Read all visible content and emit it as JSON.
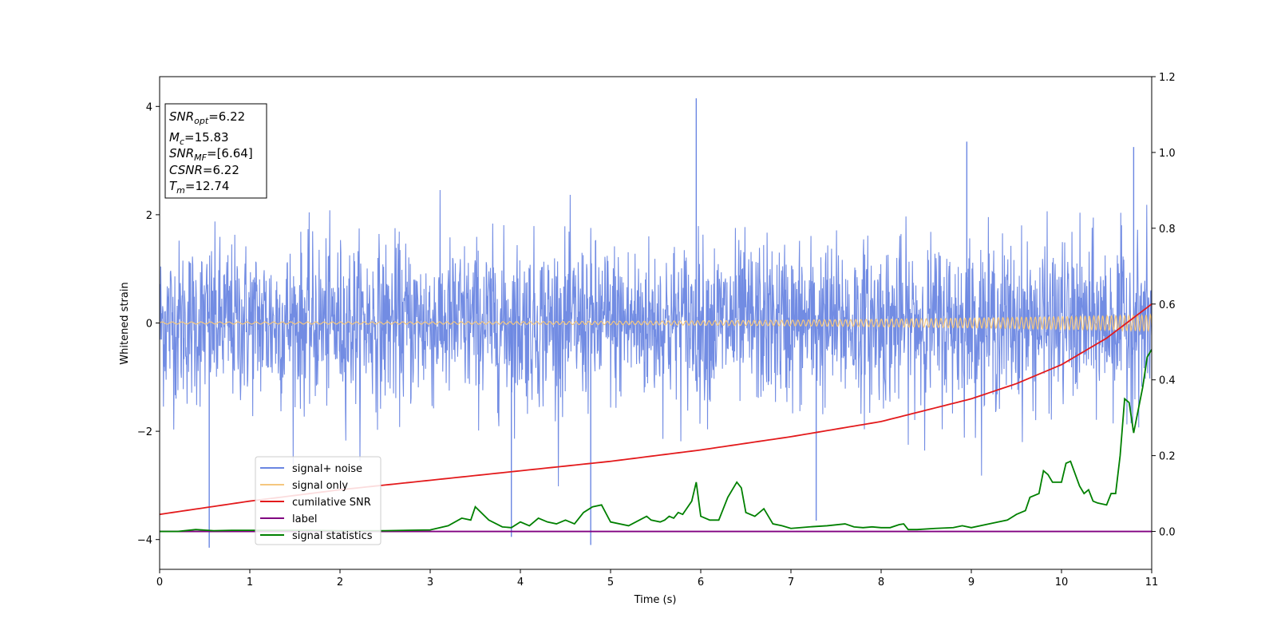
{
  "chart_data": {
    "type": "line",
    "title": "",
    "xlabel": "Time (s)",
    "ylabel": "Whitened strain",
    "xlim": [
      0,
      11
    ],
    "ylim_left": [
      -4.55,
      4.55
    ],
    "ylim_right": [
      -0.1,
      1.2
    ],
    "x_ticks": [
      0,
      1,
      2,
      3,
      4,
      5,
      6,
      7,
      8,
      9,
      10,
      11
    ],
    "y_left_ticks": [
      -4,
      -2,
      0,
      2,
      4
    ],
    "y_right_ticks": [
      "0.0",
      "0.2",
      "0.4",
      "0.6",
      "0.8",
      "1.0",
      "1.2"
    ],
    "grid": false,
    "legend_position": "lower-left",
    "info_box": [
      {
        "base": "SNR",
        "sub": "opt",
        "value": "=6.22"
      },
      {
        "base": "M",
        "sub": "c",
        "value": "=15.83"
      },
      {
        "base": "SNR",
        "sub": "MF",
        "value": "=[6.64]"
      },
      {
        "base": "CSNR",
        "sub": "",
        "value": "=6.22"
      },
      {
        "base": "T",
        "sub": "m",
        "value": "=12.74"
      }
    ],
    "series": [
      {
        "name": "signal+ noise",
        "axis": "left",
        "color": "#6a86e2",
        "kind": "noise",
        "approx_std": 0.75,
        "notable_spikes": [
          [
            0.55,
            -4.15
          ],
          [
            3.9,
            -3.95
          ],
          [
            4.78,
            -4.1
          ],
          [
            5.95,
            4.15
          ],
          [
            7.28,
            -3.65
          ],
          [
            8.95,
            3.35
          ],
          [
            10.8,
            3.25
          ]
        ]
      },
      {
        "name": "signal only",
        "axis": "left",
        "color": "#f5c77e",
        "kind": "chirp",
        "amplitude_start": 0.02,
        "amplitude_end": 0.15
      },
      {
        "name": "cumilative SNR",
        "axis": "right",
        "color": "#e31a1c",
        "x": [
          0,
          1,
          2,
          3,
          4,
          5,
          6,
          7,
          8,
          9,
          9.5,
          10,
          10.5,
          11
        ],
        "y": [
          0.045,
          0.08,
          0.11,
          0.135,
          0.16,
          0.185,
          0.215,
          0.25,
          0.29,
          0.35,
          0.39,
          0.44,
          0.51,
          0.6
        ]
      },
      {
        "name": "label",
        "axis": "right",
        "color": "#800080",
        "x": [
          0,
          11
        ],
        "y": [
          0,
          0
        ]
      },
      {
        "name": "signal statistics",
        "axis": "right",
        "color": "#008000",
        "x": [
          0,
          0.2,
          0.4,
          0.6,
          0.8,
          1.0,
          1.5,
          2.0,
          2.5,
          3.0,
          3.2,
          3.35,
          3.45,
          3.5,
          3.65,
          3.8,
          3.9,
          4.0,
          4.1,
          4.2,
          4.3,
          4.4,
          4.5,
          4.6,
          4.7,
          4.8,
          4.9,
          5.0,
          5.2,
          5.4,
          5.45,
          5.55,
          5.6,
          5.65,
          5.7,
          5.75,
          5.8,
          5.9,
          5.95,
          6.0,
          6.1,
          6.2,
          6.3,
          6.4,
          6.45,
          6.5,
          6.6,
          6.7,
          6.8,
          6.9,
          7.0,
          7.2,
          7.4,
          7.6,
          7.7,
          7.8,
          7.9,
          8.0,
          8.1,
          8.2,
          8.25,
          8.3,
          8.4,
          8.6,
          8.8,
          8.9,
          9.0,
          9.2,
          9.3,
          9.4,
          9.5,
          9.6,
          9.65,
          9.75,
          9.8,
          9.85,
          9.9,
          10.0,
          10.05,
          10.1,
          10.2,
          10.25,
          10.3,
          10.35,
          10.4,
          10.5,
          10.55,
          10.6,
          10.65,
          10.7,
          10.75,
          10.8,
          10.9,
          10.95,
          11.0
        ],
        "y": [
          0.0,
          0.0,
          0.005,
          0.002,
          0.003,
          0.003,
          0.003,
          0.002,
          0.002,
          0.004,
          0.015,
          0.035,
          0.03,
          0.065,
          0.03,
          0.012,
          0.01,
          0.025,
          0.015,
          0.035,
          0.025,
          0.02,
          0.03,
          0.02,
          0.05,
          0.065,
          0.07,
          0.025,
          0.015,
          0.04,
          0.03,
          0.025,
          0.03,
          0.04,
          0.035,
          0.05,
          0.045,
          0.08,
          0.13,
          0.04,
          0.03,
          0.03,
          0.09,
          0.13,
          0.115,
          0.05,
          0.04,
          0.06,
          0.02,
          0.015,
          0.008,
          0.012,
          0.015,
          0.02,
          0.012,
          0.01,
          0.012,
          0.01,
          0.01,
          0.018,
          0.02,
          0.005,
          0.005,
          0.008,
          0.01,
          0.015,
          0.01,
          0.02,
          0.025,
          0.03,
          0.045,
          0.055,
          0.09,
          0.1,
          0.16,
          0.15,
          0.13,
          0.13,
          0.18,
          0.185,
          0.12,
          0.1,
          0.11,
          0.08,
          0.075,
          0.07,
          0.1,
          0.1,
          0.2,
          0.35,
          0.34,
          0.26,
          0.38,
          0.46,
          0.48
        ]
      }
    ]
  }
}
